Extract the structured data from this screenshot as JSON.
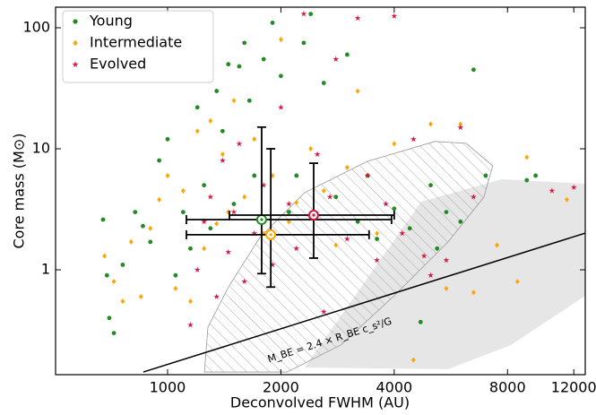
{
  "chart_data": {
    "type": "scatter",
    "x_label": "Deconvolved FWHM (AU)",
    "y_label": "Core mass (M⊙)",
    "xlim": [
      504,
      12870
    ],
    "ylim": [
      0.136,
      148
    ],
    "log_x": true,
    "log_y": true,
    "xticks": [
      1000,
      2000,
      4000,
      8000,
      12000
    ],
    "yticks": [
      1,
      10,
      100
    ],
    "legend": "upper left",
    "series": [
      {
        "name": "Young",
        "color": "#228b22",
        "marker": "circle",
        "x": [
          674,
          690,
          700,
          720,
          760,
          820,
          860,
          900,
          950,
          1000,
          1050,
          1100,
          1150,
          1200,
          1250,
          1300,
          1350,
          1400,
          1450,
          1500,
          1550,
          1600,
          1650,
          1700,
          1800,
          1900,
          2000,
          2100,
          2200,
          2300,
          2400,
          2600,
          2800,
          3000,
          3200,
          3400,
          3600,
          4000,
          4400,
          4700,
          5000,
          5500,
          6000,
          6500,
          7000,
          9500,
          9000,
          5200
        ],
        "values": [
          2.6,
          0.9,
          0.4,
          0.3,
          1.1,
          3.0,
          2.3,
          1.7,
          8,
          12,
          0.9,
          3,
          1.5,
          22,
          5,
          2.2,
          30,
          14,
          50,
          3.5,
          48,
          75,
          25,
          6,
          55,
          110,
          40,
          3,
          6,
          75,
          130,
          35,
          4,
          60,
          2.5,
          6,
          1.8,
          3.2,
          2.2,
          0.37,
          5,
          3,
          2.5,
          45,
          6,
          6,
          5.5,
          1.5
        ]
      },
      {
        "name": "Intermediate",
        "color": "#ffa500",
        "marker": "diamond",
        "x": [
          680,
          720,
          760,
          800,
          850,
          900,
          950,
          1000,
          1050,
          1100,
          1150,
          1200,
          1250,
          1300,
          1350,
          1400,
          1450,
          1500,
          1600,
          1700,
          1800,
          1900,
          2000,
          2100,
          2200,
          2400,
          2600,
          2800,
          3000,
          3200,
          3600,
          4000,
          4500,
          5000,
          5500,
          6000,
          6500,
          7500,
          9000,
          8500,
          11500
        ],
        "values": [
          1.3,
          0.8,
          0.55,
          1.7,
          0.6,
          2.2,
          3.8,
          6,
          0.7,
          4.5,
          0.55,
          14,
          1.5,
          17,
          2.4,
          9,
          3,
          25,
          4,
          12,
          2,
          6,
          80,
          2.5,
          3.6,
          10,
          4.5,
          1.6,
          7,
          30,
          2,
          11,
          0.18,
          16,
          0.7,
          16,
          0.65,
          1.6,
          8.5,
          0.8,
          3.8
        ]
      },
      {
        "name": "Evolved",
        "color": "#dc143c",
        "marker": "star",
        "x": [
          1150,
          1200,
          1250,
          1300,
          1350,
          1400,
          1450,
          1500,
          1550,
          1600,
          1700,
          1800,
          1900,
          2000,
          2100,
          2200,
          2300,
          2400,
          2500,
          2600,
          2700,
          2800,
          3000,
          3200,
          3400,
          3600,
          3800,
          4000,
          4200,
          4500,
          4800,
          5000,
          5500,
          6000,
          6500,
          10500,
          12000
        ],
        "values": [
          0.35,
          1.0,
          2.5,
          4,
          0.6,
          8,
          1.4,
          3,
          11,
          0.8,
          2,
          5,
          1.1,
          22,
          3.5,
          1.5,
          130,
          2.7,
          9,
          0.45,
          4,
          55,
          1.8,
          120,
          6,
          1.2,
          3.5,
          125,
          2,
          12,
          1.3,
          0.9,
          1.2,
          15,
          4,
          4.5,
          4.8
        ]
      }
    ],
    "error_bars": [
      {
        "color": "#228b22",
        "x": 1778,
        "y": 2.6,
        "x_range": [
          1122,
          3935
        ],
        "y_range": [
          0.93,
          15.1
        ]
      },
      {
        "color": "#ffa500",
        "x": 1880,
        "y": 1.95,
        "x_range": [
          1122,
          3430
        ],
        "y_range": [
          0.72,
          10
        ]
      },
      {
        "color": "#dc143c",
        "x": 2444,
        "y": 2.83,
        "x_range": [
          1460,
          4000
        ],
        "y_range": [
          1.25,
          7.6
        ]
      }
    ],
    "regions": [
      {
        "style": "filled",
        "color": "#e6e6e6",
        "x": [
          2312,
          4720,
          7730,
          12870,
          12870,
          8170,
          5560
        ],
        "y": [
          0.156,
          3.66,
          5.6,
          5.14,
          0.61,
          0.239,
          0.151
        ]
      },
      {
        "style": "hatched",
        "color": "#999999",
        "x": [
          1253,
          1280,
          1452,
          1758,
          2312,
          3396,
          5130,
          6210,
          7310,
          6920,
          5560,
          4000,
          2884,
          2075
        ],
        "y": [
          0.143,
          0.336,
          0.723,
          1.85,
          4.34,
          7.87,
          11.5,
          11.1,
          7.23,
          3.98,
          1.7,
          0.61,
          0.239,
          0.143
        ]
      }
    ],
    "model_line": {
      "color": "#000000",
      "x": [
        862,
        12870
      ],
      "y": [
        0.143,
        2.01
      ],
      "annotation": "M_BE = 2.4 × R_BE c_s²/G"
    }
  }
}
